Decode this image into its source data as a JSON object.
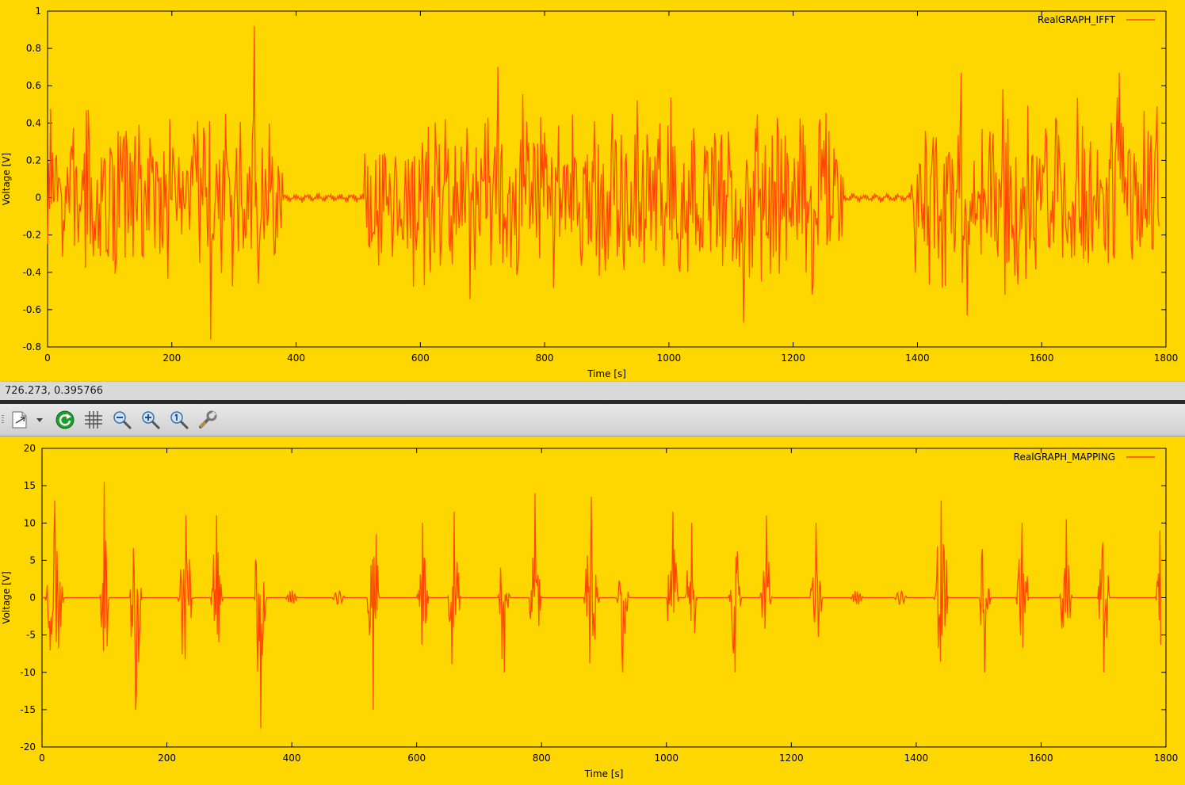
{
  "status": {
    "coords": "726.273,  0.395766"
  },
  "toolbar": {
    "icons": [
      "export-icon",
      "dropdown-arrow-icon",
      "refresh-icon",
      "grid-icon",
      "zoom-out-icon",
      "zoom-in-icon",
      "zoom-reset-icon",
      "settings-wrench-icon"
    ]
  },
  "colors": {
    "background": "#ffd700",
    "line": "#ff2a00",
    "line_core": "#ff7a00"
  },
  "chart_data": [
    {
      "type": "line",
      "legend": "RealGRAPH_IFFT",
      "xlabel": "Time [s]",
      "ylabel": "Voltage [V]",
      "xlim": [
        0,
        1800
      ],
      "ylim": [
        -0.8,
        1
      ],
      "xticks": [
        0,
        200,
        400,
        600,
        800,
        1000,
        1200,
        1400,
        1600,
        1800
      ],
      "yticks": [
        -0.8,
        -0.6,
        -0.4,
        -0.2,
        0,
        0.2,
        0.4,
        0.6,
        0.8,
        1
      ],
      "ytick_labels": [
        "-0.8",
        "-0.6",
        "-0.4",
        "-0.2",
        "0",
        "0.2",
        "0.4",
        "0.6",
        "0.8",
        "1"
      ],
      "legend_position": "top-right",
      "signal_segments": [
        {
          "start": 0,
          "end": 380,
          "amplitude": 0.5
        },
        {
          "start": 380,
          "end": 510,
          "amplitude": 0.02
        },
        {
          "start": 510,
          "end": 1280,
          "amplitude": 0.55
        },
        {
          "start": 1280,
          "end": 1390,
          "amplitude": 0.02
        },
        {
          "start": 1390,
          "end": 1790,
          "amplitude": 0.55
        }
      ],
      "peaks": [
        {
          "x": 333,
          "y": 0.92
        },
        {
          "x": 262,
          "y": -0.76
        },
        {
          "x": 725,
          "y": 0.7
        },
        {
          "x": 1120,
          "y": -0.67
        },
        {
          "x": 1470,
          "y": 0.67
        },
        {
          "x": 1725,
          "y": 0.67
        }
      ]
    },
    {
      "type": "line",
      "legend": "RealGRAPH_MAPPING",
      "xlabel": "Time [s]",
      "ylabel": "Voltage [V]",
      "xlim": [
        0,
        1800
      ],
      "ylim": [
        -20,
        20
      ],
      "xticks": [
        0,
        200,
        400,
        600,
        800,
        1000,
        1200,
        1400,
        1600,
        1800
      ],
      "yticks": [
        -20,
        -15,
        -10,
        -5,
        0,
        5,
        10,
        15,
        20
      ],
      "ytick_labels": [
        "-20",
        "-15",
        "-10",
        "-5",
        "0",
        "5",
        "10",
        "15",
        "20"
      ],
      "legend_position": "top-right",
      "bursts": [
        {
          "center": 20,
          "width": 30,
          "amplitude": 13
        },
        {
          "center": 100,
          "width": 15,
          "amplitude": 15.5
        },
        {
          "center": 150,
          "width": 20,
          "amplitude": 15
        },
        {
          "center": 230,
          "width": 25,
          "amplitude": 11
        },
        {
          "center": 280,
          "width": 20,
          "amplitude": 11
        },
        {
          "center": 350,
          "width": 20,
          "amplitude": 17.5
        },
        {
          "center": 400,
          "width": 20,
          "amplitude": 1
        },
        {
          "center": 475,
          "width": 20,
          "amplitude": 1
        },
        {
          "center": 530,
          "width": 20,
          "amplitude": 15
        },
        {
          "center": 610,
          "width": 20,
          "amplitude": 10
        },
        {
          "center": 660,
          "width": 20,
          "amplitude": 11.5
        },
        {
          "center": 740,
          "width": 20,
          "amplitude": 10
        },
        {
          "center": 790,
          "width": 20,
          "amplitude": 14
        },
        {
          "center": 880,
          "width": 25,
          "amplitude": 13.5
        },
        {
          "center": 930,
          "width": 20,
          "amplitude": 10
        },
        {
          "center": 1010,
          "width": 20,
          "amplitude": 11.5
        },
        {
          "center": 1040,
          "width": 20,
          "amplitude": 10
        },
        {
          "center": 1110,
          "width": 20,
          "amplitude": 10
        },
        {
          "center": 1160,
          "width": 20,
          "amplitude": 11
        },
        {
          "center": 1240,
          "width": 20,
          "amplitude": 10
        },
        {
          "center": 1305,
          "width": 20,
          "amplitude": 1
        },
        {
          "center": 1375,
          "width": 20,
          "amplitude": 1
        },
        {
          "center": 1440,
          "width": 25,
          "amplitude": 13
        },
        {
          "center": 1510,
          "width": 20,
          "amplitude": 10
        },
        {
          "center": 1570,
          "width": 20,
          "amplitude": 10
        },
        {
          "center": 1640,
          "width": 20,
          "amplitude": 10.5
        },
        {
          "center": 1700,
          "width": 20,
          "amplitude": 10
        },
        {
          "center": 1790,
          "width": 15,
          "amplitude": 9
        }
      ]
    }
  ]
}
